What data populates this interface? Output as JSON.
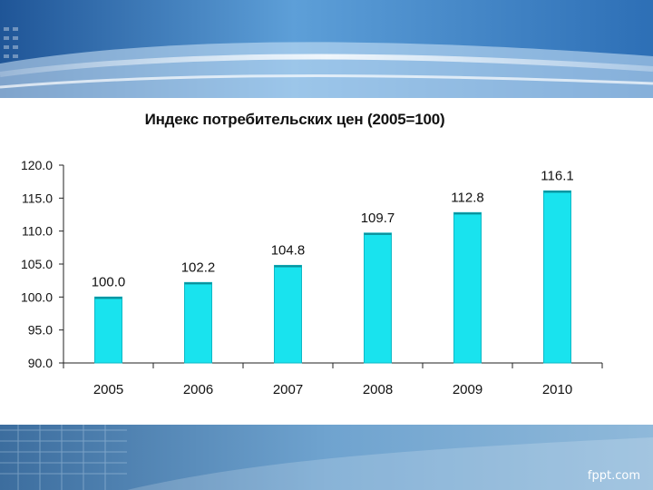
{
  "slide": {
    "watermark": "fppt.com"
  },
  "colors": {
    "bar": "#19e3ee",
    "bar_edge": "#0fb9c6",
    "axis": "#222222",
    "header_dark": "#2a64a8",
    "header_light": "#8ec6ec"
  },
  "chart_data": {
    "type": "bar",
    "title": "Индекс потребительских цен (2005=100)",
    "categories": [
      "2005",
      "2006",
      "2007",
      "2008",
      "2009",
      "2010"
    ],
    "values": [
      100.0,
      102.2,
      104.8,
      109.7,
      112.8,
      116.1
    ],
    "data_labels": [
      "100.0",
      "102.2",
      "104.8",
      "109.7",
      "112.8",
      "116.1"
    ],
    "yticks": [
      "90.0",
      "95.0",
      "100.0",
      "105.0",
      "110.0",
      "115.0",
      "120.0"
    ],
    "ylim": [
      90,
      120
    ],
    "grid": false,
    "legend": "none"
  }
}
